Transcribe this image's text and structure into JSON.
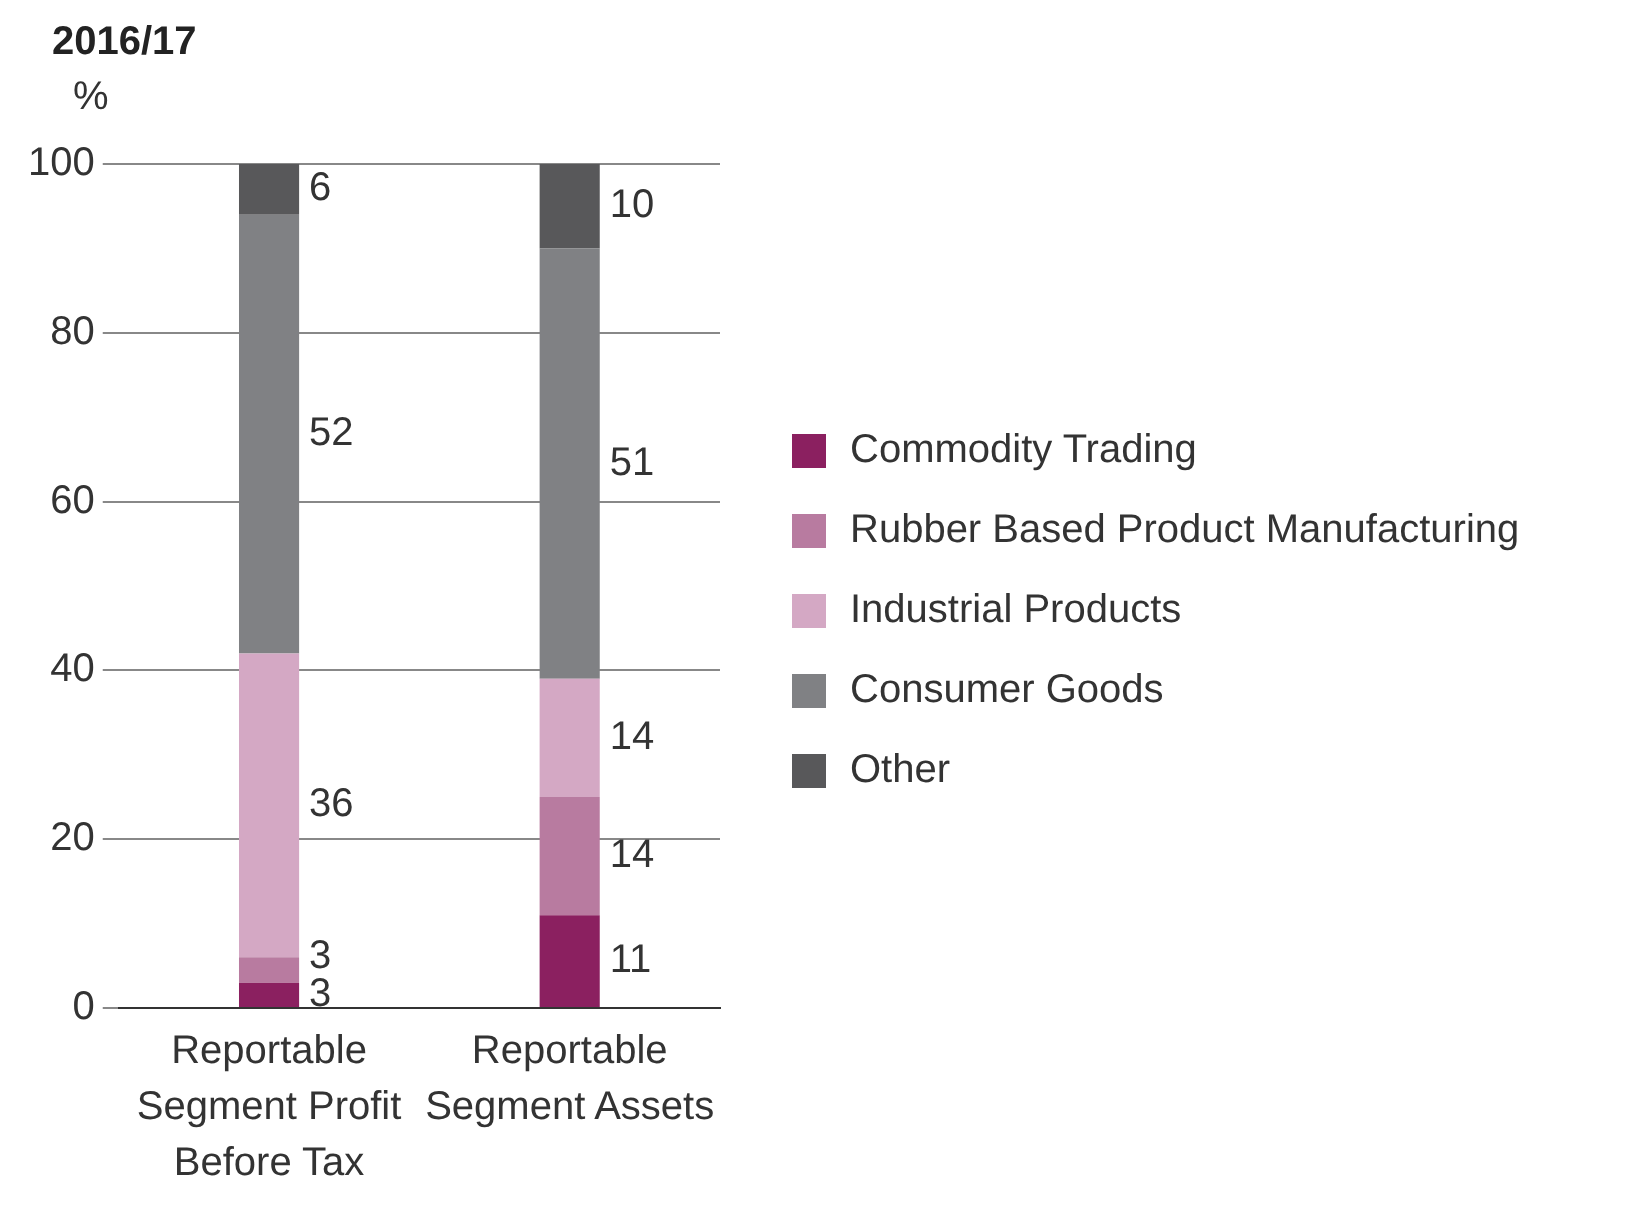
{
  "chart_data": {
    "type": "bar",
    "title": "2016/17",
    "ylabel": "%",
    "stacked": true,
    "data_labels": true,
    "grid": "y",
    "legend": "right",
    "categories": [
      "Reportable Segment Profit Before Tax",
      "Reportable Segment Assets"
    ],
    "ylim": [
      0,
      100
    ],
    "yticks": [
      0,
      20,
      40,
      60,
      80,
      100
    ],
    "series": [
      {
        "name": "Commodity Trading",
        "color": "#8b2060",
        "values": [
          3,
          11
        ]
      },
      {
        "name": "Rubber Based Product Manufacturing",
        "color": "#b87ba0",
        "values": [
          3,
          14
        ]
      },
      {
        "name": "Industrial Products",
        "color": "#d4a8c4",
        "values": [
          36,
          14
        ]
      },
      {
        "name": "Consumer Goods",
        "color": "#808184",
        "values": [
          52,
          51
        ]
      },
      {
        "name": "Other",
        "color": "#58585a",
        "values": [
          6,
          10
        ]
      }
    ]
  }
}
